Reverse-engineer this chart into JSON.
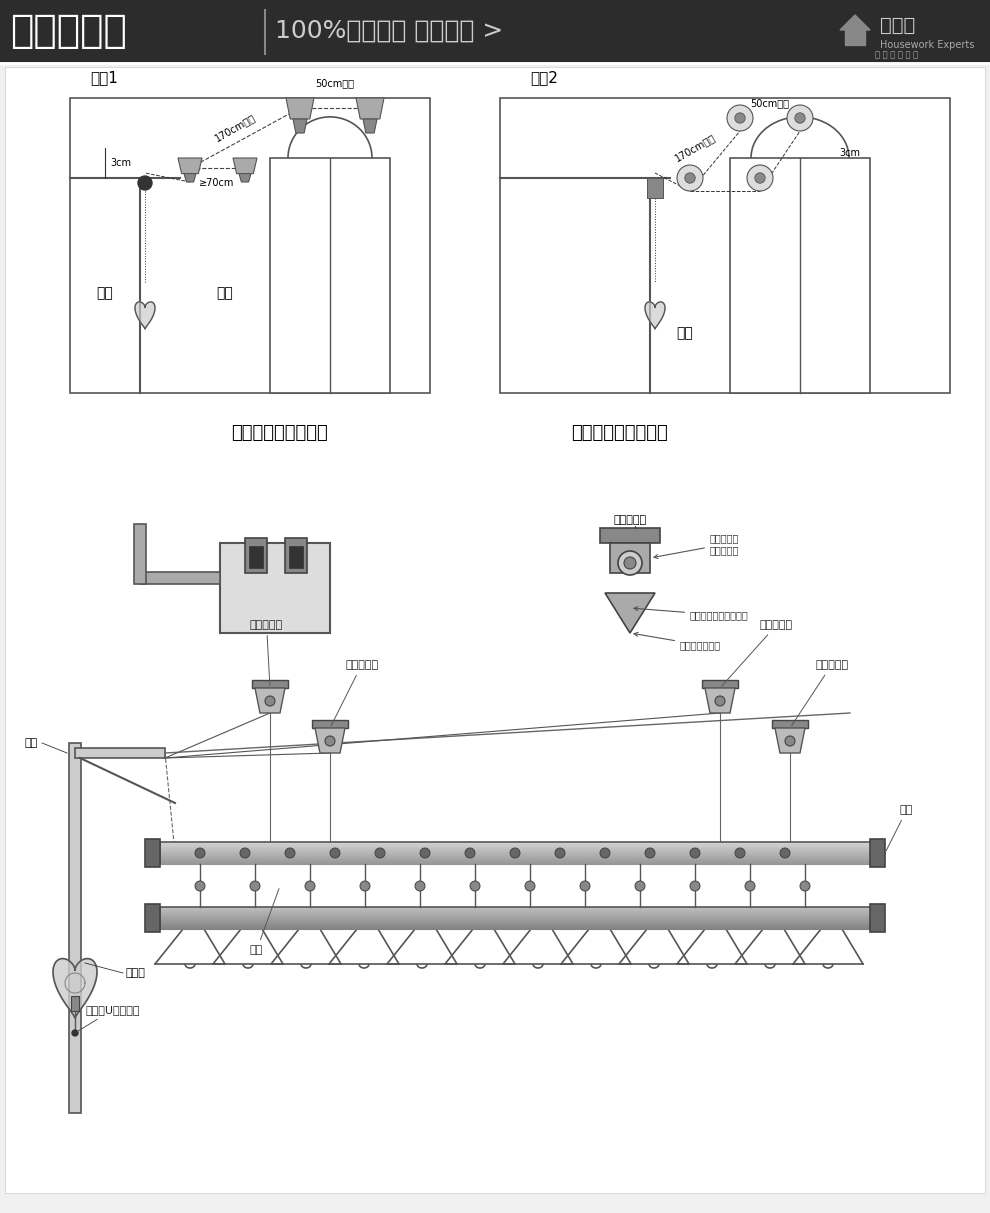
{
  "bg_color": "#f5f5f5",
  "header_bg": "#2a2a2a",
  "title_text": "安装示意图",
  "subtitle_text": "100%实物拍摄 盗用必究 》",
  "brand_text": "家务通",
  "brand_sub": "Housework Experts",
  "section1_title": "方案1",
  "section2_title": "方案2",
  "mid_title_left": "转角钢丝绳安装方法",
  "mid_title_right": "双滑轮钢丝安装方法",
  "labels": {
    "wall1": "墙面",
    "wall2": "墙面",
    "wall3": "墙面",
    "corner": "转角",
    "double_top1": "双滑轮顶座",
    "double_top2": "双滑轮顶座",
    "single_top1": "单滑轮顶座",
    "single_top2": "单滑轮顶座",
    "tube_cap": "管帽",
    "hanger_ball": "吊球",
    "wire_fix": "钢丝绳U型固定端",
    "hand_crank": "手摇器",
    "dim1": "170cm左右",
    "dim2": "50cm左右",
    "dim3": "≥70cm",
    "dim4": "3cm",
    "dim5": "170cm左右",
    "dim6": "50cm左右",
    "dim7": "3cm",
    "double_top_label": "双滑轮顶座",
    "wire_dir": "钢丝绳通向\n单滑轮顶座",
    "top_cover": "顶座装好后扣上装饰盖",
    "wire_connect": "钢丝绳连接晾杆"
  }
}
